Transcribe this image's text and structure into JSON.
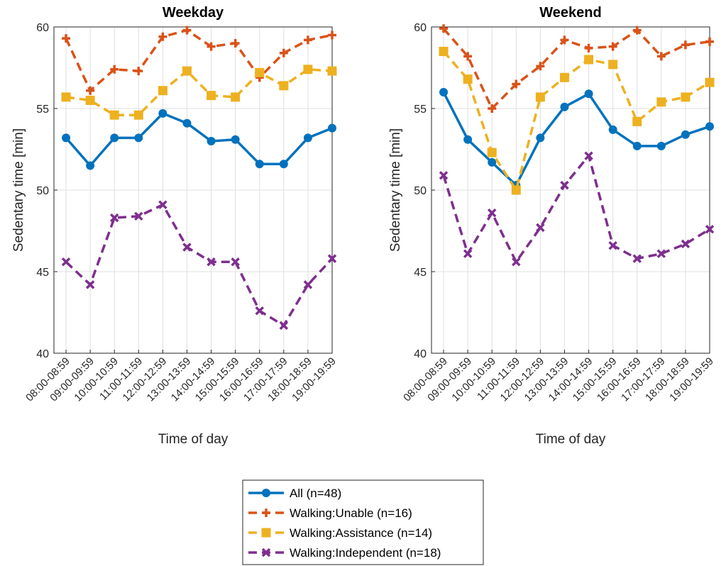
{
  "chart_data": [
    {
      "type": "line",
      "title": "Weekday",
      "xlabel": "Time of day",
      "ylabel": "Sedentary time [min]",
      "ylim": [
        40,
        60
      ],
      "yticks": [
        40,
        45,
        50,
        55,
        60
      ],
      "grid": true,
      "categories": [
        "08:00-08:59",
        "09:00-09:59",
        "10:00-10:59",
        "11:00-11:59",
        "12:00-12:59",
        "13:00-13:59",
        "14:00-14:59",
        "15:00-15:59",
        "16:00-16:59",
        "17:00-17:59",
        "18:00-18:59",
        "19:00-19:59"
      ],
      "series": [
        {
          "name": "All (n=48)",
          "color": "#0072BD",
          "marker": "circle",
          "dashed": false,
          "values": [
            53.2,
            51.5,
            53.2,
            53.2,
            54.7,
            54.1,
            53.0,
            53.1,
            51.6,
            51.6,
            53.2,
            53.8
          ]
        },
        {
          "name": "Walking:Unable (n=16)",
          "color": "#D95319",
          "marker": "plus",
          "dashed": true,
          "values": [
            59.3,
            56.1,
            57.4,
            57.3,
            59.4,
            59.8,
            58.8,
            59.0,
            56.9,
            58.4,
            59.2,
            59.5
          ]
        },
        {
          "name": "Walking:Assistance (n=14)",
          "color": "#EDB120",
          "marker": "square",
          "dashed": true,
          "values": [
            55.7,
            55.5,
            54.6,
            54.6,
            56.1,
            57.3,
            55.8,
            55.7,
            57.2,
            56.4,
            57.4,
            57.3
          ]
        },
        {
          "name": "Walking:Independent (n=18)",
          "color": "#7E2F8E",
          "marker": "x",
          "dashed": true,
          "values": [
            45.6,
            44.2,
            48.3,
            48.4,
            49.1,
            46.5,
            45.6,
            45.6,
            42.6,
            41.7,
            44.2,
            45.8
          ]
        }
      ]
    },
    {
      "type": "line",
      "title": "Weekend",
      "xlabel": "Time of day",
      "ylabel": "Sedentary time [min]",
      "ylim": [
        40,
        60
      ],
      "yticks": [
        40,
        45,
        50,
        55,
        60
      ],
      "grid": true,
      "categories": [
        "08:00-08:59",
        "09:00-09:59",
        "10:00-10:59",
        "11:00-11:59",
        "12:00-12:59",
        "13:00-13:59",
        "14:00-14:59",
        "15:00-15:59",
        "16:00-16:59",
        "17:00-17:59",
        "18:00-18:59",
        "19:00-19:59"
      ],
      "series": [
        {
          "name": "All (n=48)",
          "color": "#0072BD",
          "marker": "circle",
          "dashed": false,
          "values": [
            56.0,
            53.1,
            51.7,
            50.3,
            53.2,
            55.1,
            55.9,
            53.7,
            52.7,
            52.7,
            53.4,
            53.9
          ]
        },
        {
          "name": "Walking:Unable (n=16)",
          "color": "#D95319",
          "marker": "plus",
          "dashed": true,
          "values": [
            59.9,
            58.2,
            55.0,
            56.5,
            57.6,
            59.2,
            58.7,
            58.8,
            59.8,
            58.2,
            58.9,
            59.1
          ]
        },
        {
          "name": "Walking:Assistance (n=14)",
          "color": "#EDB120",
          "marker": "square",
          "dashed": true,
          "values": [
            58.5,
            56.8,
            52.3,
            50.0,
            55.7,
            56.9,
            58.0,
            57.7,
            54.2,
            55.4,
            55.7,
            56.6
          ]
        },
        {
          "name": "Walking:Independent (n=18)",
          "color": "#7E2F8E",
          "marker": "x",
          "dashed": true,
          "values": [
            50.9,
            46.1,
            48.6,
            45.6,
            47.7,
            50.3,
            52.1,
            46.6,
            45.8,
            46.1,
            46.7,
            47.6
          ]
        }
      ]
    }
  ],
  "legend": {
    "placement": "bottom-center",
    "entries": [
      "All (n=48)",
      "Walking:Unable (n=16)",
      "Walking:Assistance (n=14)",
      "Walking:Independent (n=18)"
    ]
  }
}
